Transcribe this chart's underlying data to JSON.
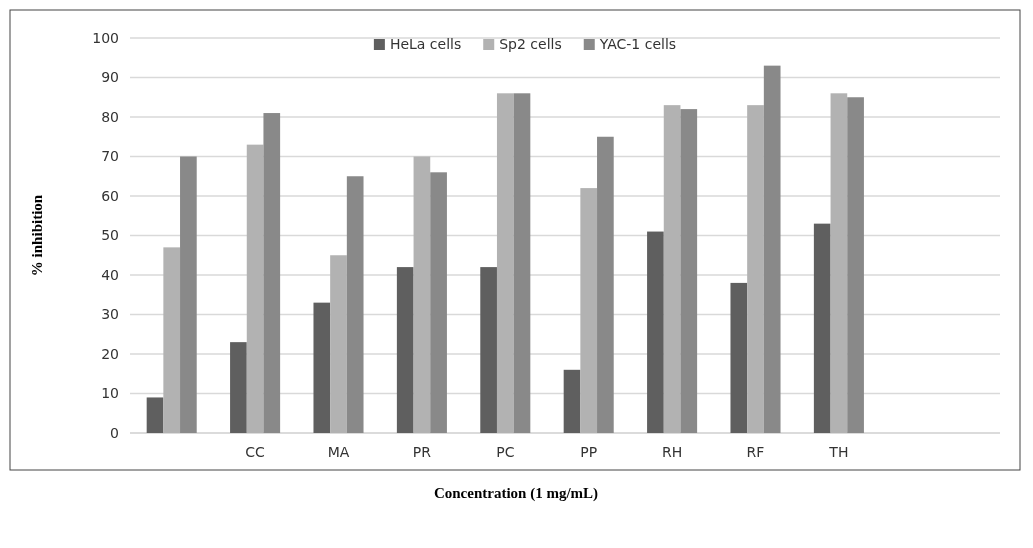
{
  "chart_data": {
    "type": "bar",
    "xlabel": "Concentration (1 mg/mL)",
    "ylabel": "% inhibition",
    "categories": [
      null,
      "CC",
      "MA",
      "PR",
      "PC",
      "PP",
      "RH",
      "RF",
      "TH",
      null
    ],
    "series": [
      {
        "name": "HeLa cells",
        "color": "#5f5f5f",
        "values": [
          9,
          23,
          33,
          42,
          42,
          16,
          51,
          38,
          53,
          null
        ]
      },
      {
        "name": "Sp2 cells",
        "color": "#b2b2b2",
        "values": [
          47,
          73,
          45,
          70,
          86,
          62,
          83,
          83,
          86,
          null
        ]
      },
      {
        "name": "YAC-1 cells",
        "color": "#898989",
        "values": [
          70,
          81,
          65,
          66,
          86,
          75,
          82,
          93,
          85,
          null
        ]
      }
    ],
    "ylim": [
      0,
      100
    ],
    "yticks": [
      0,
      10,
      20,
      30,
      40,
      50,
      60,
      70,
      80,
      90,
      100
    ],
    "grid": "y",
    "legend": "top"
  }
}
